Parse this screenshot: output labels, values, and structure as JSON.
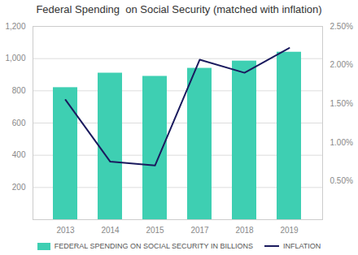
{
  "chart_data": {
    "type": "bar",
    "title": "Federal Spending  on Social Security (matched with inflation)",
    "categories": [
      "2013",
      "2014",
      "2015",
      "2017",
      "2018",
      "2019"
    ],
    "series": [
      {
        "name": "FEDERAL SPENDING ON SOCIAL SECURITY IN BILLIONS",
        "type": "bar",
        "color": "#3ECFB2",
        "values": [
          820,
          910,
          890,
          940,
          985,
          1040
        ]
      },
      {
        "name": "INFLATION",
        "type": "line",
        "axis": "y2",
        "color": "#1a1a5e",
        "values": [
          1.55,
          0.75,
          0.7,
          2.07,
          1.9,
          2.22
        ]
      }
    ],
    "ylim": [
      0,
      1200
    ],
    "yticks": [
      200,
      400,
      600,
      800,
      1000,
      1200
    ],
    "y2lim": [
      0.0,
      2.5
    ],
    "y2ticks": [
      {
        "value": 0.5,
        "label": "0.50%"
      },
      {
        "value": 1.0,
        "label": "1.00%"
      },
      {
        "value": 1.5,
        "label": "1.50%"
      },
      {
        "value": 2.0,
        "label": "2.00%"
      },
      {
        "value": 2.5,
        "label": "2.50%"
      }
    ],
    "grid": true,
    "legend": "bottom"
  }
}
